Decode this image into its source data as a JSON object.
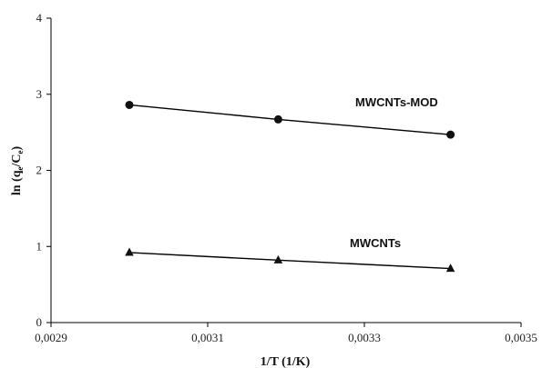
{
  "chart_data": {
    "type": "scatter",
    "xlabel": "1/T (1/K)",
    "ylabel": "ln (q",
    "ylabel_sub1": "e",
    "ylabel_mid": "/C",
    "ylabel_sub2": "e",
    "ylabel_end": ")",
    "xlim": [
      0.0029,
      0.0035
    ],
    "ylim": [
      0,
      4
    ],
    "x_ticks": [
      0.0029,
      0.0031,
      0.0033,
      0.0035
    ],
    "x_tick_labels": [
      "0,0029",
      "0,0031",
      "0,0033",
      "0,0035"
    ],
    "y_ticks": [
      0,
      1,
      2,
      3,
      4
    ],
    "y_tick_labels": [
      "0",
      "1",
      "2",
      "3",
      "4"
    ],
    "grid": false,
    "series": [
      {
        "name": "MWCNTs-MOD",
        "marker": "circle",
        "x": [
          0.003,
          0.00319,
          0.00341
        ],
        "y": [
          2.86,
          2.67,
          2.47
        ]
      },
      {
        "name": "MWCNTs",
        "marker": "triangle",
        "x": [
          0.003,
          0.00319,
          0.00341
        ],
        "y": [
          0.92,
          0.82,
          0.71
        ]
      }
    ],
    "colors": {
      "line": "#000000",
      "marker": "#111111"
    }
  }
}
